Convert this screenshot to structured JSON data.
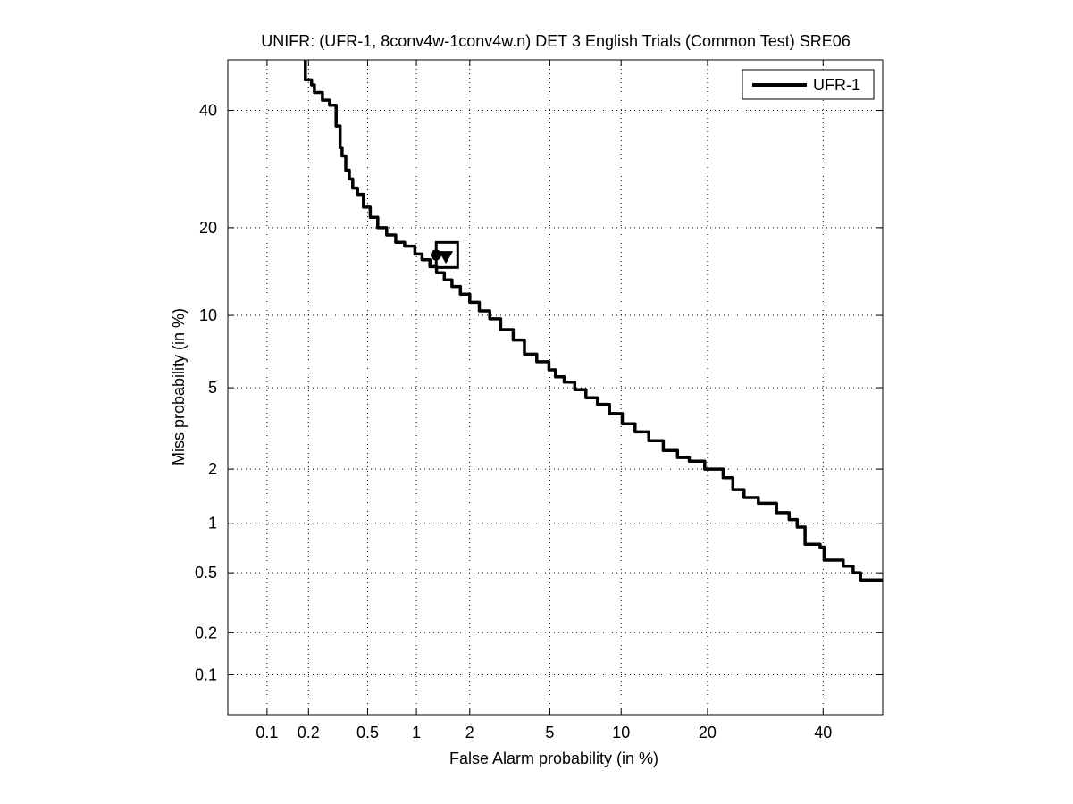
{
  "chart_data": {
    "type": "line",
    "title": "UNIFR: (UFR-1, 8conv4w-1conv4w.n) DET 3 English Trials (Common Test) SRE06",
    "xlabel": "False Alarm probability (in %)",
    "ylabel": "Miss probability (in %)",
    "x_scale": "normal-deviate (probit)",
    "y_scale": "normal-deviate (probit)",
    "xlim": [
      0.05,
      52
    ],
    "ylim": [
      0.05,
      50
    ],
    "x_ticks": [
      0.1,
      0.2,
      0.5,
      1,
      2,
      5,
      10,
      20,
      40
    ],
    "x_tick_labels": [
      "0.1",
      "0.2",
      "0.5",
      "1",
      "2",
      "5",
      "10",
      "20",
      "40"
    ],
    "y_ticks": [
      0.1,
      0.2,
      0.5,
      1,
      2,
      5,
      10,
      20,
      40
    ],
    "y_tick_labels": [
      "0.1",
      "0.2",
      "0.5",
      "1",
      "2",
      "5",
      "10",
      "20",
      "40"
    ],
    "grid": true,
    "legend_position": "top-right",
    "series": [
      {
        "name": "UFR-1",
        "color": "#000000",
        "x": [
          0.19,
          0.21,
          0.22,
          0.25,
          0.28,
          0.31,
          0.33,
          0.34,
          0.36,
          0.38,
          0.4,
          0.43,
          0.47,
          0.52,
          0.58,
          0.66,
          0.75,
          0.85,
          0.98,
          1.08,
          1.2,
          1.31,
          1.45,
          1.6,
          1.78,
          2.0,
          2.25,
          2.55,
          2.9,
          3.35,
          3.8,
          4.35,
          4.95,
          5.3,
          5.8,
          6.45,
          7.2,
          8.05,
          9.0,
          10.1,
          11.3,
          12.7,
          14.3,
          16.0,
          17.5,
          19.6,
          22.3,
          23.8,
          25.6,
          28.0,
          31.2,
          33.5,
          35.0,
          36.5,
          39.4,
          40.2,
          44.0,
          46.0,
          47.5,
          52.0
        ],
        "y": [
          50.0,
          46.0,
          45.0,
          43.5,
          42.0,
          41.0,
          37.0,
          33.0,
          31.5,
          29.0,
          27.5,
          26.0,
          25.0,
          23.0,
          21.5,
          20.0,
          19.0,
          18.0,
          17.5,
          16.5,
          15.8,
          15.0,
          14.3,
          13.5,
          12.8,
          12.0,
          11.2,
          10.4,
          9.7,
          8.8,
          8.0,
          7.0,
          6.5,
          6.0,
          5.6,
          5.3,
          4.9,
          4.5,
          4.2,
          3.8,
          3.4,
          3.1,
          2.8,
          2.5,
          2.3,
          2.2,
          2.0,
          1.8,
          1.55,
          1.4,
          1.3,
          1.15,
          1.05,
          0.95,
          0.75,
          0.72,
          0.6,
          0.55,
          0.5,
          0.45
        ],
        "markers": [
          {
            "shape": "circle",
            "x": 1.3,
            "y": 16.4
          },
          {
            "shape": "triangle-down",
            "x": 1.48,
            "y": 16.2
          },
          {
            "shape": "square",
            "x": 1.5,
            "y": 16.4
          }
        ]
      }
    ]
  }
}
